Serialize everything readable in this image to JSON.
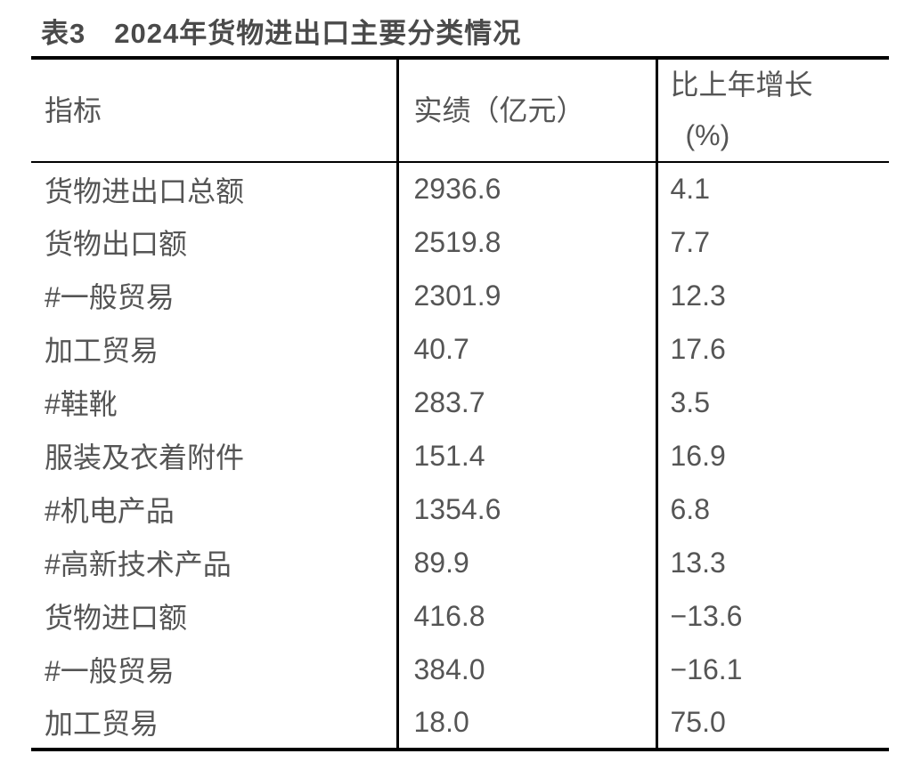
{
  "title": "表3　2024年货物进出口主要分类情况",
  "colors": {
    "text": "#555555",
    "title": "#4a4a4a",
    "border": "#000000",
    "background": "#ffffff"
  },
  "table": {
    "header": {
      "indicator": "指标",
      "value": "实绩（亿元）",
      "growth_line1": "比上年增长",
      "growth_line2": "(%)"
    },
    "rows": [
      {
        "indicator": "货物进出口总额",
        "value": "2936.6",
        "growth": "4.1"
      },
      {
        "indicator": "货物出口额",
        "value": "2519.8",
        "growth": "7.7"
      },
      {
        "indicator": "#一般贸易",
        "value": "2301.9",
        "growth": "12.3"
      },
      {
        "indicator": "加工贸易",
        "value": "40.7",
        "growth": "17.6"
      },
      {
        "indicator": "#鞋靴",
        "value": "283.7",
        "growth": "3.5"
      },
      {
        "indicator": "服装及衣着附件",
        "value": "151.4",
        "growth": "16.9"
      },
      {
        "indicator": "#机电产品",
        "value": "1354.6",
        "growth": "6.8"
      },
      {
        "indicator": "#高新技术产品",
        "value": "89.9",
        "growth": "13.3"
      },
      {
        "indicator": "货物进口额",
        "value": "416.8",
        "growth": "−13.6"
      },
      {
        "indicator": "#一般贸易",
        "value": "384.0",
        "growth": "−16.1"
      },
      {
        "indicator": "加工贸易",
        "value": "18.0",
        "growth": "75.0"
      }
    ]
  },
  "chart_data": {
    "type": "table",
    "title": "表3　2024年货物进出口主要分类情况",
    "columns": [
      "指标",
      "实绩（亿元）",
      "比上年增长(%)"
    ],
    "categories": [
      "货物进出口总额",
      "货物出口额",
      "#一般贸易",
      "加工贸易",
      "#鞋靴",
      "服装及衣着附件",
      "#机电产品",
      "#高新技术产品",
      "货物进口额",
      "#一般贸易",
      "加工贸易"
    ],
    "series": [
      {
        "name": "实绩（亿元）",
        "values": [
          2936.6,
          2519.8,
          2301.9,
          40.7,
          283.7,
          151.4,
          1354.6,
          89.9,
          416.8,
          384.0,
          18.0
        ]
      },
      {
        "name": "比上年增长(%)",
        "values": [
          4.1,
          7.7,
          12.3,
          17.6,
          3.5,
          16.9,
          6.8,
          13.3,
          -13.6,
          -16.1,
          75.0
        ]
      }
    ]
  }
}
